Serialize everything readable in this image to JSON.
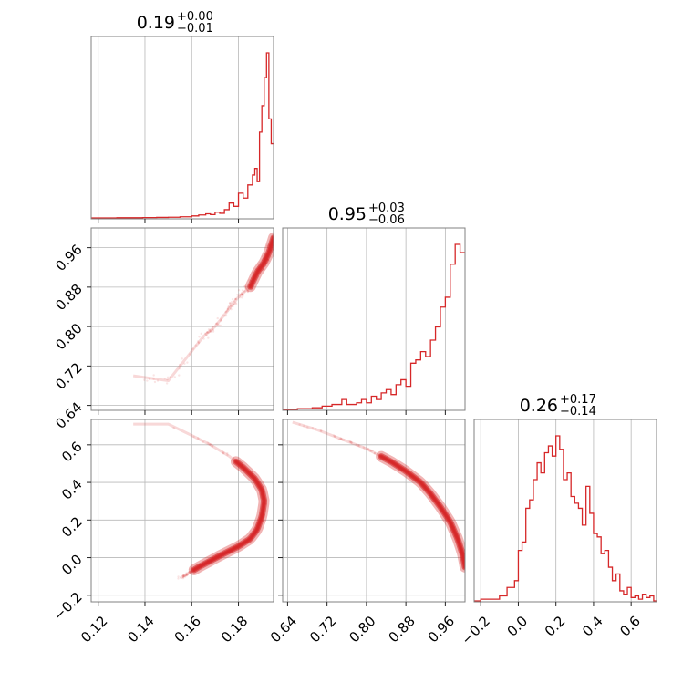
{
  "chart_data": {
    "type": "corner",
    "color": "#d62728",
    "grid": true,
    "parameters": [
      {
        "name": "",
        "range": [
          0.117,
          0.195
        ],
        "ticks": [
          0.12,
          0.14,
          0.16,
          0.18
        ],
        "tick_labels": [
          "0.12",
          "0.14",
          "0.16",
          "0.18"
        ],
        "title": {
          "main": "0.19",
          "sup": "+0.00",
          "sub": "−0.01"
        },
        "hist": {
          "bin_edges": [
            0.117,
            0.128,
            0.139,
            0.145,
            0.15,
            0.155,
            0.16,
            0.163,
            0.166,
            0.168,
            0.17,
            0.172,
            0.174,
            0.176,
            0.178,
            0.18,
            0.182,
            0.184,
            0.186,
            0.187,
            0.188,
            0.189,
            0.19,
            0.191,
            0.192,
            0.193,
            0.194,
            0.195
          ],
          "counts": [
            0,
            0.001,
            0.002,
            0.003,
            0.004,
            0.007,
            0.012,
            0.018,
            0.025,
            0.02,
            0.035,
            0.028,
            0.05,
            0.09,
            0.07,
            0.15,
            0.12,
            0.2,
            0.26,
            0.3,
            0.22,
            0.52,
            0.68,
            0.85,
            1.0,
            0.6,
            0.45
          ]
        }
      },
      {
        "name": "",
        "range": [
          0.63,
          1.0
        ],
        "ticks": [
          0.64,
          0.72,
          0.8,
          0.88,
          0.96
        ],
        "tick_labels": [
          "0.64",
          "0.72",
          "0.80",
          "0.88",
          "0.96"
        ],
        "title": {
          "main": "0.95",
          "sup": "+0.03",
          "sub": "−0.06"
        },
        "hist": {
          "bin_edges": [
            0.63,
            0.66,
            0.69,
            0.71,
            0.73,
            0.75,
            0.76,
            0.78,
            0.79,
            0.8,
            0.81,
            0.82,
            0.83,
            0.84,
            0.85,
            0.86,
            0.87,
            0.88,
            0.89,
            0.9,
            0.91,
            0.92,
            0.93,
            0.94,
            0.95,
            0.96,
            0.97,
            0.98,
            0.99,
            1.0
          ],
          "counts": [
            0,
            0.005,
            0.01,
            0.02,
            0.03,
            0.06,
            0.03,
            0.04,
            0.06,
            0.04,
            0.08,
            0.06,
            0.1,
            0.12,
            0.09,
            0.15,
            0.18,
            0.14,
            0.28,
            0.3,
            0.35,
            0.32,
            0.42,
            0.5,
            0.62,
            0.68,
            0.88,
            1.0,
            0.95
          ]
        }
      },
      {
        "name": "",
        "range": [
          -0.235,
          0.735
        ],
        "ticks": [
          -0.2,
          0.0,
          0.2,
          0.4,
          0.6
        ],
        "tick_labels": [
          "−0.2",
          "0.0",
          "0.2",
          "0.4",
          "0.6"
        ],
        "title": {
          "main": "0.26",
          "sup": "+0.17",
          "sub": "−0.14"
        },
        "hist": {
          "bin_edges": [
            -0.235,
            -0.2,
            -0.1,
            -0.06,
            -0.02,
            0.0,
            0.02,
            0.04,
            0.06,
            0.08,
            0.1,
            0.12,
            0.14,
            0.16,
            0.18,
            0.2,
            0.22,
            0.24,
            0.26,
            0.28,
            0.3,
            0.32,
            0.34,
            0.36,
            0.38,
            0.4,
            0.42,
            0.44,
            0.46,
            0.48,
            0.5,
            0.52,
            0.54,
            0.56,
            0.58,
            0.6,
            0.62,
            0.64,
            0.66,
            0.68,
            0.7,
            0.72,
            0.735
          ],
          "counts": [
            0,
            0.01,
            0.03,
            0.08,
            0.12,
            0.3,
            0.35,
            0.55,
            0.6,
            0.72,
            0.82,
            0.76,
            0.88,
            0.92,
            0.86,
            0.98,
            0.9,
            0.72,
            0.76,
            0.62,
            0.58,
            0.55,
            0.45,
            0.68,
            0.52,
            0.4,
            0.38,
            0.28,
            0.3,
            0.2,
            0.12,
            0.16,
            0.06,
            0.04,
            0.08,
            0.02,
            0.03,
            0.01,
            0.04,
            0.02,
            0.03,
            0
          ]
        }
      }
    ],
    "pairs": [
      {
        "row": 1,
        "col": 0,
        "ridge": [
          [
            0.135,
            0.7
          ],
          [
            0.15,
            0.69
          ],
          [
            0.16,
            0.75
          ],
          [
            0.165,
            0.78
          ],
          [
            0.17,
            0.8
          ],
          [
            0.175,
            0.83
          ],
          [
            0.18,
            0.86
          ],
          [
            0.185,
            0.88
          ],
          [
            0.188,
            0.91
          ],
          [
            0.191,
            0.93
          ],
          [
            0.193,
            0.95
          ],
          [
            0.195,
            0.98
          ]
        ],
        "x_scatter": 0.002,
        "y_scatter": 0.012,
        "core_from": 0.64
      },
      {
        "row": 2,
        "col": 0,
        "ridge": [
          [
            0.135,
            0.71
          ],
          [
            0.15,
            0.71
          ],
          [
            0.16,
            0.65
          ],
          [
            0.168,
            0.6
          ],
          [
            0.176,
            0.54
          ],
          [
            0.182,
            0.48
          ],
          [
            0.187,
            0.42
          ],
          [
            0.19,
            0.36
          ],
          [
            0.191,
            0.3
          ],
          [
            0.19,
            0.22
          ],
          [
            0.188,
            0.15
          ],
          [
            0.185,
            0.1
          ],
          [
            0.18,
            0.06
          ],
          [
            0.172,
            0.01
          ],
          [
            0.163,
            -0.05
          ],
          [
            0.155,
            -0.11
          ]
        ],
        "x_scatter": 0.0015,
        "y_scatter": 0.01,
        "core_from": 0.3,
        "core_to": 0.95
      },
      {
        "row": 2,
        "col": 1,
        "ridge": [
          [
            0.65,
            0.72
          ],
          [
            0.7,
            0.68
          ],
          [
            0.75,
            0.63
          ],
          [
            0.8,
            0.58
          ],
          [
            0.85,
            0.51
          ],
          [
            0.88,
            0.46
          ],
          [
            0.91,
            0.4
          ],
          [
            0.93,
            0.34
          ],
          [
            0.95,
            0.27
          ],
          [
            0.97,
            0.19
          ],
          [
            0.985,
            0.1
          ],
          [
            0.995,
            0.02
          ],
          [
            1.0,
            -0.05
          ]
        ],
        "x_scatter": 0.004,
        "y_scatter": 0.008,
        "core_from": 0.3
      }
    ]
  }
}
